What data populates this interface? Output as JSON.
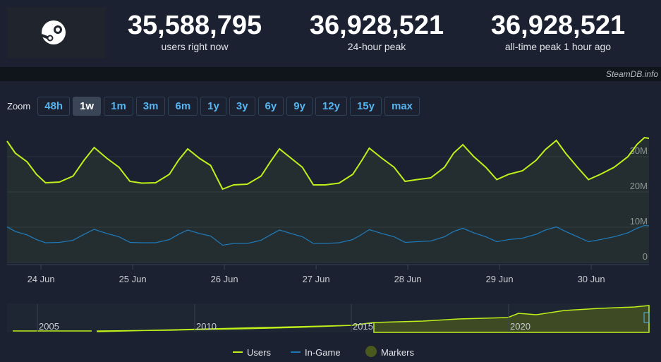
{
  "header": {
    "stats": [
      {
        "value": "35,588,795",
        "label": "users right now"
      },
      {
        "value": "36,928,521",
        "label": "24-hour peak"
      },
      {
        "value": "36,928,521",
        "label": "all-time peak 1 hour ago"
      }
    ],
    "site": "SteamDB.info"
  },
  "zoom": {
    "label": "Zoom",
    "options": [
      "48h",
      "1w",
      "1m",
      "3m",
      "6m",
      "1y",
      "3y",
      "6y",
      "9y",
      "12y",
      "15y",
      "max"
    ],
    "active": 1
  },
  "navigator": {
    "labels": [
      "2005",
      "2010",
      "2015",
      "2020"
    ]
  },
  "chart_data": {
    "type": "line",
    "x": [
      23.63,
      23.72,
      23.85,
      23.95,
      24.05,
      24.2,
      24.35,
      24.47,
      24.58,
      24.72,
      24.85,
      24.97,
      25.1,
      25.25,
      25.4,
      25.5,
      25.6,
      25.73,
      25.85,
      25.98,
      26.1,
      26.25,
      26.4,
      26.5,
      26.6,
      26.73,
      26.85,
      26.97,
      27.1,
      27.25,
      27.4,
      27.5,
      27.58,
      27.72,
      27.85,
      27.97,
      28.1,
      28.25,
      28.4,
      28.5,
      28.6,
      28.72,
      28.85,
      28.97,
      29.1,
      29.25,
      29.4,
      29.5,
      29.62,
      29.72,
      29.85,
      29.97,
      30.1,
      30.25,
      30.4,
      30.5,
      30.58,
      30.63
    ],
    "series": [
      {
        "name": "Users",
        "color": "#bef01a",
        "values": [
          34.4,
          31,
          28.5,
          25,
          22.6,
          22.8,
          24.5,
          29,
          32.6,
          29.5,
          27,
          23,
          22.5,
          22.6,
          25,
          29,
          32.2,
          29.5,
          27.5,
          20.8,
          22,
          22.2,
          24.5,
          28.5,
          32.2,
          29.5,
          27,
          22,
          22,
          22.5,
          25,
          29,
          32.4,
          29.5,
          27,
          23,
          23.5,
          24,
          27,
          31,
          33.4,
          30,
          27,
          23.5,
          25,
          26,
          29,
          32,
          34.6,
          31,
          27,
          23.5,
          25,
          27,
          30,
          33.5,
          35.4,
          35.2
        ]
      },
      {
        "name": "In-Game",
        "color": "#1f77b4",
        "values": [
          10.1,
          8.8,
          7.8,
          6.5,
          5.6,
          5.7,
          6.3,
          8.0,
          9.4,
          8.2,
          7.3,
          5.7,
          5.6,
          5.6,
          6.5,
          8.0,
          9.2,
          8.2,
          7.5,
          4.9,
          5.4,
          5.4,
          6.3,
          7.8,
          9.2,
          8.2,
          7.3,
          5.4,
          5.4,
          5.6,
          6.5,
          8.0,
          9.3,
          8.2,
          7.3,
          5.7,
          5.9,
          6.1,
          7.3,
          8.8,
          9.7,
          8.4,
          7.3,
          5.9,
          6.5,
          6.9,
          8.0,
          9.2,
          10.1,
          8.8,
          7.3,
          5.9,
          6.5,
          7.3,
          8.4,
          9.7,
          10.5,
          10.4
        ]
      }
    ],
    "markers_label": "Markers",
    "xlim": [
      23.63,
      30.63
    ],
    "xticks": [
      {
        "value": 24,
        "label": "24 Jun"
      },
      {
        "value": 25,
        "label": "25 Jun"
      },
      {
        "value": 26,
        "label": "26 Jun"
      },
      {
        "value": 27,
        "label": "27 Jun"
      },
      {
        "value": 28,
        "label": "28 Jun"
      },
      {
        "value": 29,
        "label": "29 Jun"
      },
      {
        "value": 30,
        "label": "30 Jun"
      }
    ],
    "ylim": [
      0,
      40
    ],
    "yticks": [
      0,
      {
        "value": 10,
        "label": "10M"
      },
      {
        "value": 20,
        "label": "20M"
      },
      {
        "value": 30,
        "label": "30M"
      }
    ],
    "grid": true
  }
}
